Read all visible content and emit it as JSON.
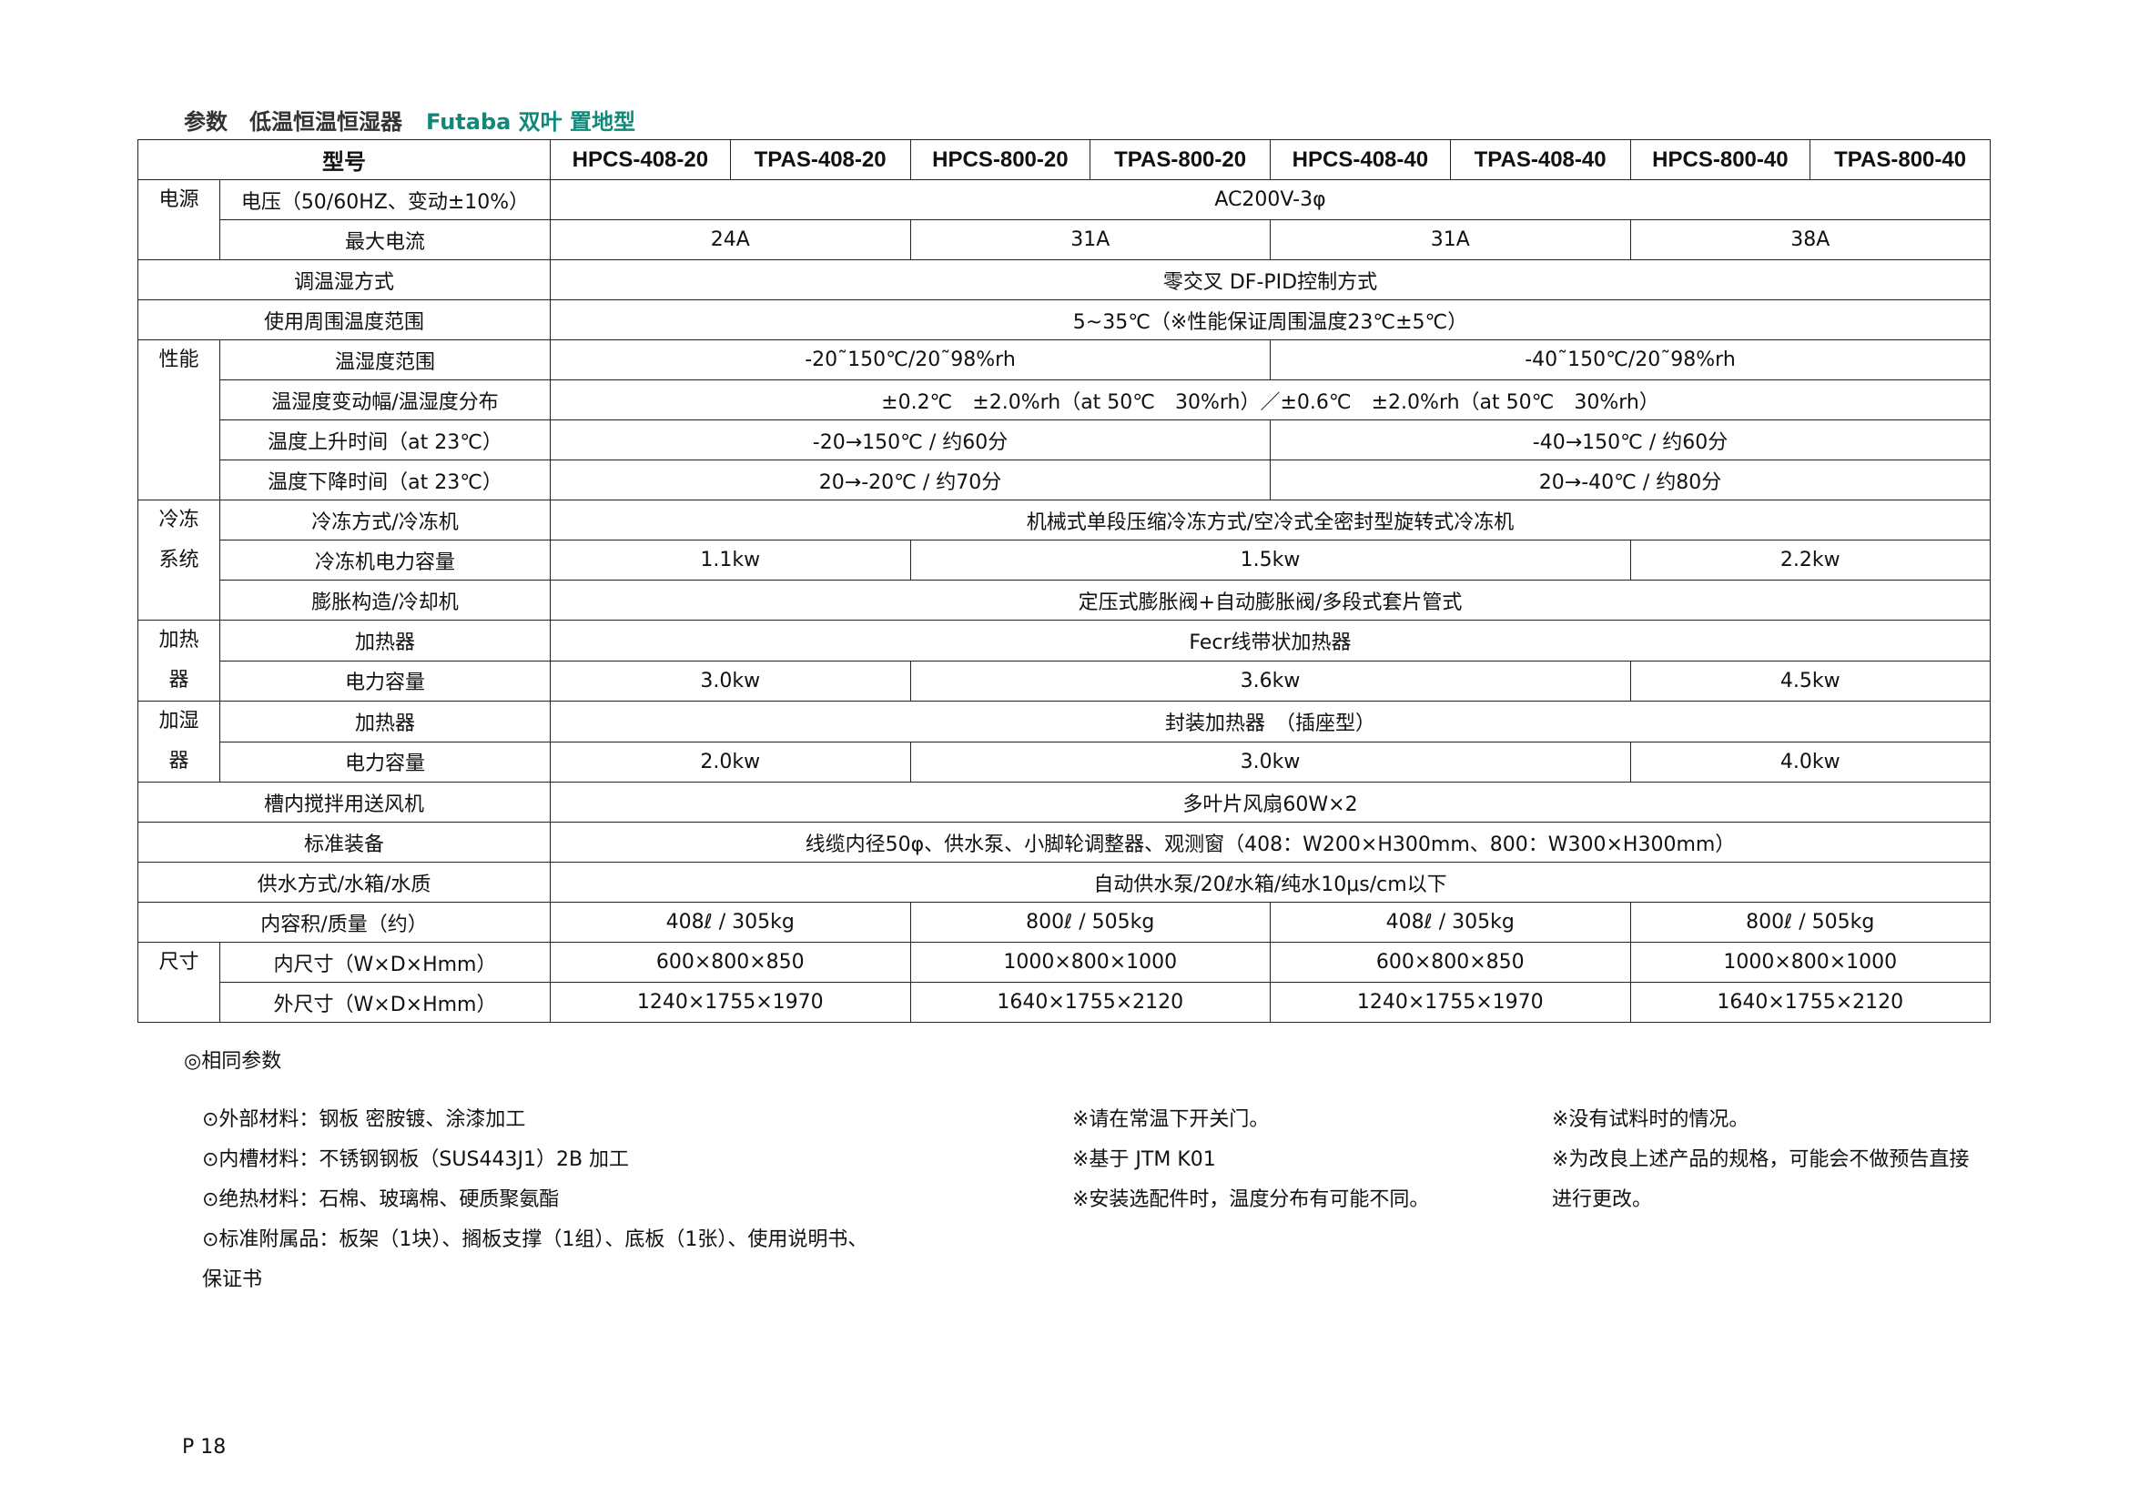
{
  "title": {
    "prefix": "参数　低温恒温恒湿器",
    "brand": "Futaba 双叶 置地型"
  },
  "table": {
    "header": {
      "label": "型号",
      "models": [
        "HPCS-408-20",
        "TPAS-408-20",
        "HPCS-800-20",
        "TPAS-800-20",
        "HPCS-408-40",
        "TPAS-408-40",
        "HPCS-800-40",
        "TPAS-800-40"
      ]
    },
    "rows": [
      {
        "group": "电源",
        "groupRows": 2,
        "label": "电压（50/60HZ、变动±10%）",
        "cells": [
          [
            "AC200V-3φ",
            8
          ]
        ]
      },
      {
        "label": "最大电流",
        "cells": [
          [
            "24A",
            2
          ],
          [
            "31A",
            2
          ],
          [
            "31A",
            2
          ],
          [
            "38A",
            2
          ]
        ]
      },
      {
        "label": "调温湿方式",
        "wide": true,
        "cells": [
          [
            "零交叉 DF-PID控制方式",
            8
          ]
        ]
      },
      {
        "label": "使用周围温度范围",
        "wide": true,
        "cells": [
          [
            "5~35℃（※性能保证周围温度23℃±5℃）",
            8
          ]
        ]
      },
      {
        "group": "性能",
        "groupRows": 4,
        "label": "温湿度范围",
        "cells": [
          [
            "-20˜150℃/20˜98%rh",
            4
          ],
          [
            "-40˜150℃/20˜98%rh",
            4
          ]
        ]
      },
      {
        "label": "温湿度变动幅/温湿度分布",
        "cells": [
          [
            "±0.2℃　±2.0%rh（at 50℃　30%rh）／±0.6℃　±2.0%rh（at 50℃　30%rh）",
            8
          ]
        ]
      },
      {
        "label": "温度上升时间（at 23℃）",
        "cells": [
          [
            "-20→150℃ / 约60分",
            4
          ],
          [
            "-40→150℃ / 约60分",
            4
          ]
        ]
      },
      {
        "label": "温度下降时间（at 23℃）",
        "cells": [
          [
            "20→-20℃ / 约70分",
            4
          ],
          [
            "20→-40℃ / 约80分",
            4
          ]
        ]
      },
      {
        "group": "冷冻\n系统",
        "groupRows": 3,
        "label": "冷冻方式/冷冻机",
        "cells": [
          [
            "机械式单段压缩冷冻方式/空冷式全密封型旋转式冷冻机",
            8
          ]
        ]
      },
      {
        "label": "冷冻机电力容量",
        "cells": [
          [
            "1.1kw",
            2
          ],
          [
            "1.5kw",
            4
          ],
          [
            "2.2kw",
            2
          ]
        ]
      },
      {
        "label": "膨胀构造/冷却机",
        "cells": [
          [
            "定压式膨胀阀+自动膨胀阀/多段式套片管式",
            8
          ]
        ]
      },
      {
        "group": "加热\n器",
        "groupRows": 2,
        "label": "加热器",
        "cells": [
          [
            "Fecr线带状加热器",
            8
          ]
        ]
      },
      {
        "label": "电力容量",
        "cells": [
          [
            "3.0kw",
            2
          ],
          [
            "3.6kw",
            4
          ],
          [
            "4.5kw",
            2
          ]
        ]
      },
      {
        "group": "加湿\n器",
        "groupRows": 2,
        "label": "加热器",
        "cells": [
          [
            "封装加热器　（插座型）",
            8
          ]
        ]
      },
      {
        "label": "电力容量",
        "cells": [
          [
            "2.0kw",
            2
          ],
          [
            "3.0kw",
            4
          ],
          [
            "4.0kw",
            2
          ]
        ]
      },
      {
        "label": "槽内搅拌用送风机",
        "wide": true,
        "cells": [
          [
            "多叶片风扇60W×2",
            8
          ]
        ]
      },
      {
        "label": "标准装备",
        "wide": true,
        "cells": [
          [
            "线缆内径50φ、供水泵、小脚轮调整器、观测窗（408：W200×H300mm、800：W300×H300mm）",
            8
          ]
        ]
      },
      {
        "label": "供水方式/水箱/水质",
        "wide": true,
        "cells": [
          [
            "自动供水泵/20ℓ水箱/纯水10μs/cm以下",
            8
          ]
        ]
      },
      {
        "label": "内容积/质量（约）",
        "wide": true,
        "cells": [
          [
            "408ℓ / 305kg",
            2
          ],
          [
            "800ℓ / 505kg",
            2
          ],
          [
            "408ℓ / 305kg",
            2
          ],
          [
            "800ℓ / 505kg",
            2
          ]
        ]
      },
      {
        "group": "尺寸",
        "groupRows": 2,
        "label": "内尺寸（W×D×Hmm）",
        "cells": [
          [
            "600×800×850",
            2
          ],
          [
            "1000×800×1000",
            2
          ],
          [
            "600×800×850",
            2
          ],
          [
            "1000×800×1000",
            2
          ]
        ]
      },
      {
        "label": "外尺寸（W×D×Hmm）",
        "cells": [
          [
            "1240×1755×1970",
            2
          ],
          [
            "1640×1755×2120",
            2
          ],
          [
            "1240×1755×1970",
            2
          ],
          [
            "1640×1755×2120",
            2
          ]
        ]
      }
    ]
  },
  "same_params": "◎相同参数",
  "notes_col1": [
    "⊙外部材料：钢板 密胺镀、涂漆加工",
    "⊙内槽材料：不锈钢钢板（SUS443J1）2B 加工",
    "⊙绝热材料：石棉、玻璃棉、硬质聚氨酯",
    "⊙标准附属品：板架（1块）、搁板支撑（1组）、底板（1张）、使用说明书、",
    "保证书"
  ],
  "notes_col2": [
    "※请在常温下开关门。",
    "※基于 JTM K01",
    "※安装选配件时，温度分布有可能不同。"
  ],
  "notes_col3": [
    "※没有试料时的情况。",
    "※为改良上述产品的规格，可能会不做预告直接",
    "进行更改。"
  ],
  "page_number": "P 18",
  "colors": {
    "brand": "#0f8a7a",
    "text": "#111111"
  }
}
